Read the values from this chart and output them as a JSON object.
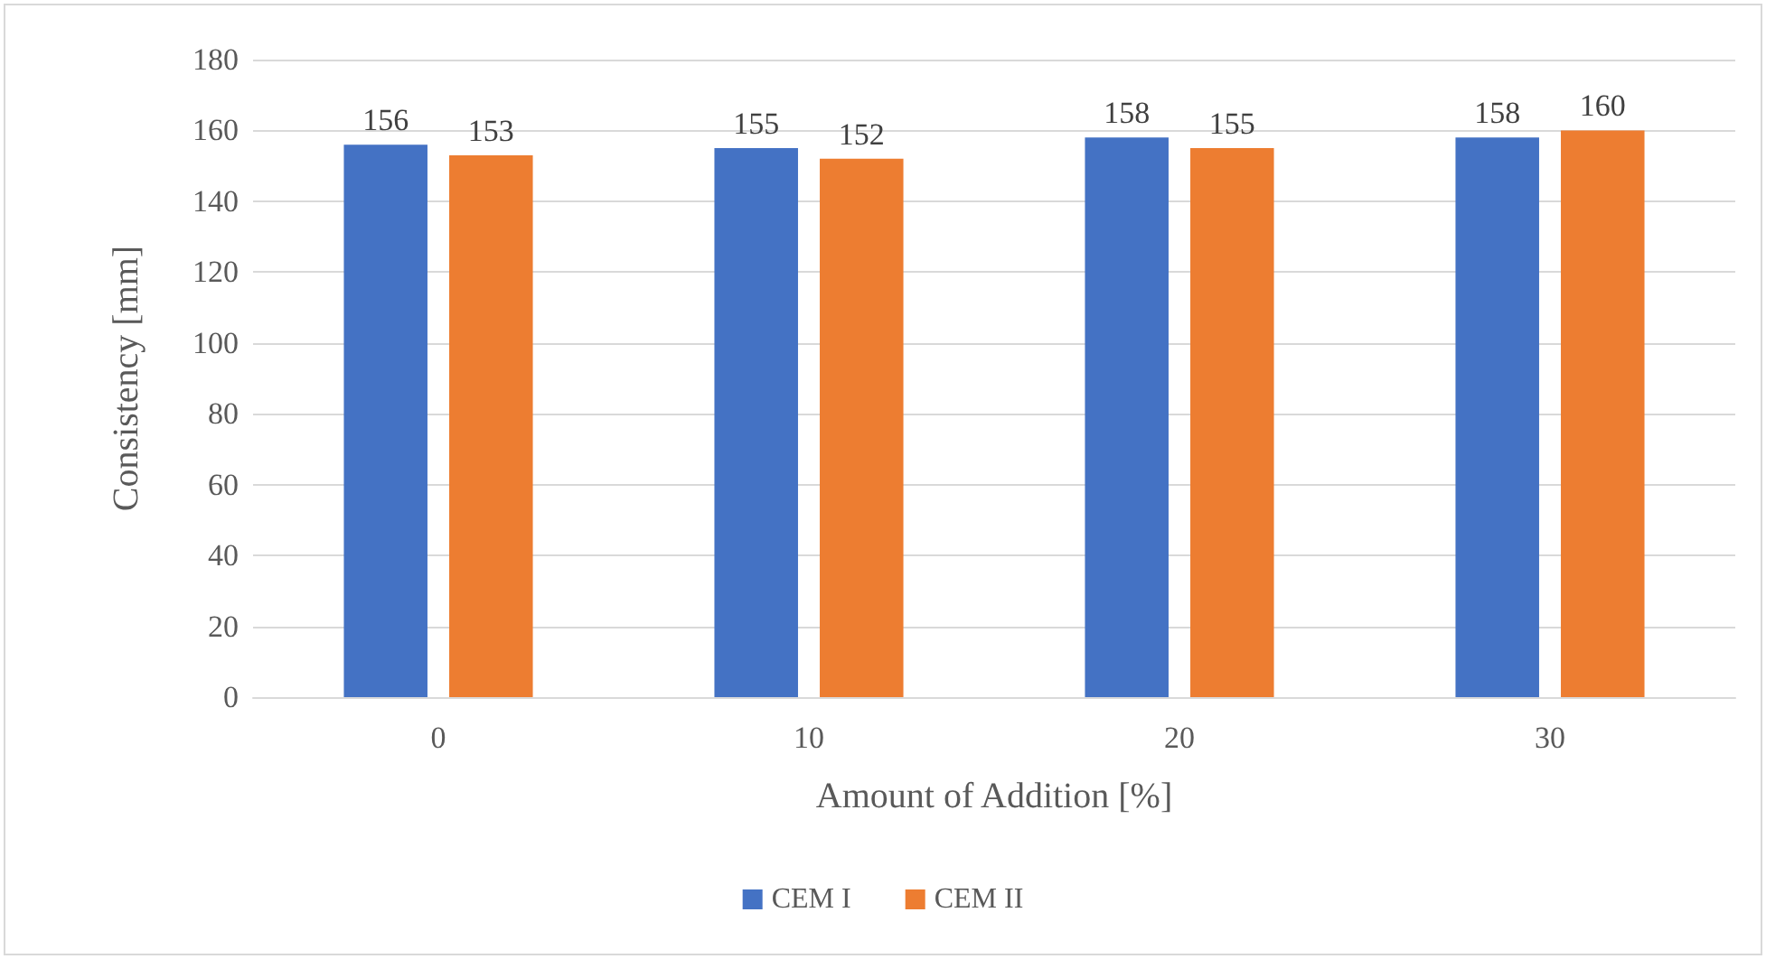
{
  "chart_data": {
    "type": "bar",
    "xlabel": "Amount of Addition [%]",
    "ylabel": "Consistency [mm]",
    "categories": [
      "0",
      "10",
      "20",
      "30"
    ],
    "series": [
      {
        "name": "CEM I",
        "color": "#4472c4",
        "values": [
          156,
          155,
          158,
          158
        ]
      },
      {
        "name": "CEM II",
        "color": "#ed7d31",
        "values": [
          153,
          152,
          155,
          160
        ]
      }
    ],
    "ylim": [
      0,
      180
    ],
    "yticks": [
      0,
      20,
      40,
      60,
      80,
      100,
      120,
      140,
      160,
      180
    ],
    "grid": "y",
    "legend": "bottom",
    "data_labels": true
  }
}
